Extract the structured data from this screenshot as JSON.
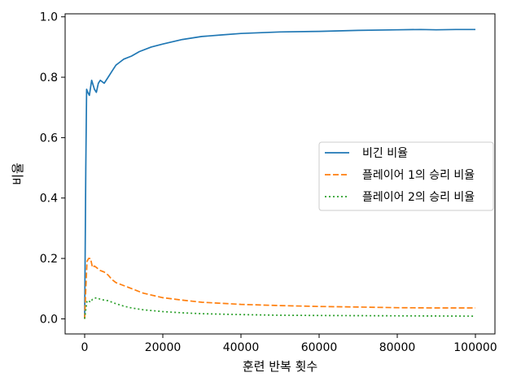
{
  "chart_data": {
    "type": "line",
    "xlabel": "훈련 반복 횟수",
    "ylabel": "비율",
    "xlim": [
      -5000,
      105000
    ],
    "ylim": [
      -0.05,
      1.01
    ],
    "x_ticks": [
      0,
      20000,
      40000,
      60000,
      80000,
      100000
    ],
    "x_tick_labels": [
      "0",
      "20000",
      "40000",
      "60000",
      "80000",
      "100000"
    ],
    "y_ticks": [
      0.0,
      0.2,
      0.4,
      0.6,
      0.8,
      1.0
    ],
    "y_tick_labels": [
      "0.0",
      "0.2",
      "0.4",
      "0.6",
      "0.8",
      "1.0"
    ],
    "grid": false,
    "legend_position": "center-right",
    "series": [
      {
        "name": "비긴 비율",
        "color": "#1f77b4",
        "dash": "solid",
        "points": [
          [
            0,
            0.0
          ],
          [
            300,
            0.5
          ],
          [
            500,
            0.76
          ],
          [
            800,
            0.75
          ],
          [
            1200,
            0.74
          ],
          [
            1800,
            0.79
          ],
          [
            2500,
            0.76
          ],
          [
            3000,
            0.75
          ],
          [
            3500,
            0.78
          ],
          [
            4000,
            0.79
          ],
          [
            5000,
            0.78
          ],
          [
            6000,
            0.8
          ],
          [
            7000,
            0.82
          ],
          [
            8000,
            0.84
          ],
          [
            9000,
            0.85
          ],
          [
            10000,
            0.86
          ],
          [
            12000,
            0.87
          ],
          [
            14000,
            0.885
          ],
          [
            17000,
            0.9
          ],
          [
            20000,
            0.91
          ],
          [
            25000,
            0.925
          ],
          [
            30000,
            0.935
          ],
          [
            35000,
            0.94
          ],
          [
            40000,
            0.945
          ],
          [
            50000,
            0.95
          ],
          [
            60000,
            0.952
          ],
          [
            70000,
            0.955
          ],
          [
            80000,
            0.957
          ],
          [
            86000,
            0.958
          ],
          [
            90000,
            0.957
          ],
          [
            95000,
            0.958
          ],
          [
            100000,
            0.958
          ]
        ]
      },
      {
        "name": "플레이어 1의 승리 비율",
        "color": "#ff7f0e",
        "dash": "dashed",
        "points": [
          [
            0,
            0.0
          ],
          [
            300,
            0.1
          ],
          [
            600,
            0.19
          ],
          [
            1000,
            0.2
          ],
          [
            1500,
            0.2
          ],
          [
            2000,
            0.17
          ],
          [
            2500,
            0.175
          ],
          [
            3000,
            0.17
          ],
          [
            3500,
            0.165
          ],
          [
            4000,
            0.16
          ],
          [
            5000,
            0.155
          ],
          [
            6000,
            0.145
          ],
          [
            7000,
            0.13
          ],
          [
            8000,
            0.12
          ],
          [
            10000,
            0.11
          ],
          [
            12000,
            0.1
          ],
          [
            15000,
            0.085
          ],
          [
            20000,
            0.07
          ],
          [
            25000,
            0.062
          ],
          [
            30000,
            0.055
          ],
          [
            40000,
            0.048
          ],
          [
            50000,
            0.044
          ],
          [
            60000,
            0.041
          ],
          [
            70000,
            0.039
          ],
          [
            80000,
            0.037
          ],
          [
            90000,
            0.036
          ],
          [
            100000,
            0.036
          ]
        ]
      },
      {
        "name": "플레이어 2의 승리 비율",
        "color": "#2ca02c",
        "dash": "dotted",
        "points": [
          [
            0,
            0.0
          ],
          [
            300,
            0.03
          ],
          [
            600,
            0.06
          ],
          [
            1000,
            0.06
          ],
          [
            1500,
            0.055
          ],
          [
            2000,
            0.065
          ],
          [
            3000,
            0.07
          ],
          [
            4000,
            0.065
          ],
          [
            5000,
            0.062
          ],
          [
            6000,
            0.06
          ],
          [
            8000,
            0.05
          ],
          [
            10000,
            0.042
          ],
          [
            12000,
            0.036
          ],
          [
            15000,
            0.03
          ],
          [
            20000,
            0.024
          ],
          [
            25000,
            0.02
          ],
          [
            30000,
            0.017
          ],
          [
            40000,
            0.014
          ],
          [
            50000,
            0.012
          ],
          [
            60000,
            0.011
          ],
          [
            80000,
            0.01
          ],
          [
            100000,
            0.009
          ]
        ]
      }
    ]
  }
}
